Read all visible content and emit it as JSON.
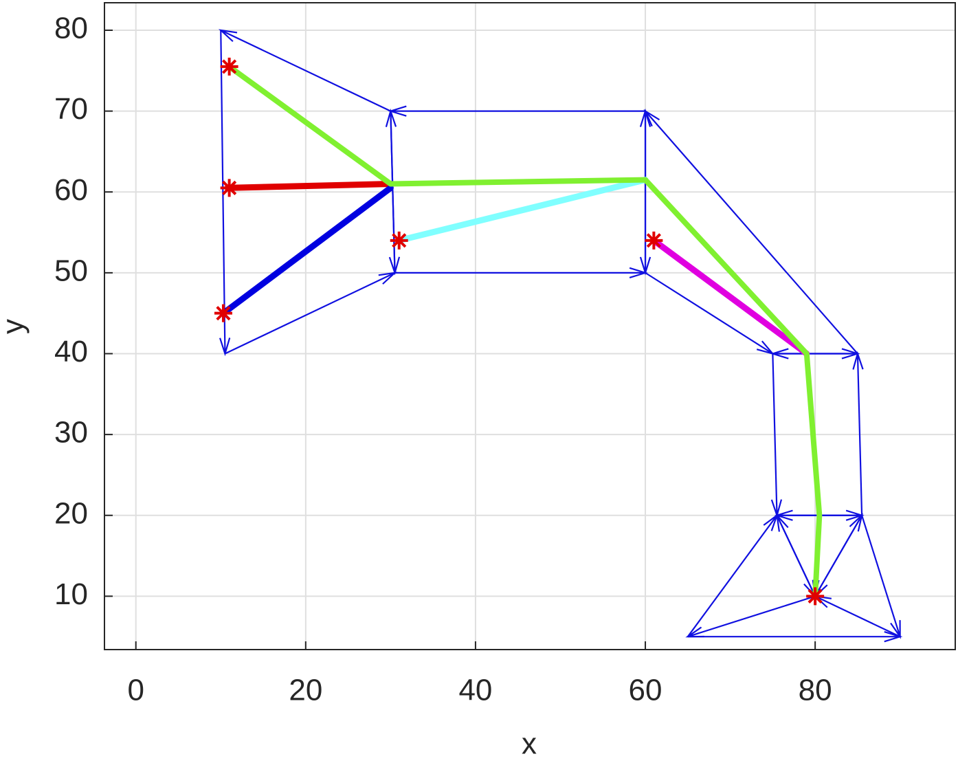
{
  "chart_data": {
    "type": "line",
    "xlabel": "x",
    "ylabel": "y",
    "xlim": [
      -3.7,
      96.5
    ],
    "ylim": [
      3.4,
      83.4
    ],
    "xticks": [
      0,
      20,
      40,
      60,
      80
    ],
    "yticks": [
      10,
      20,
      30,
      40,
      50,
      60,
      70,
      80
    ],
    "grid": true,
    "edge_color": "#1010e0",
    "edges": [
      {
        "x": [
          30,
          10
        ],
        "y": [
          70,
          80
        ]
      },
      {
        "x": [
          10,
          10.5
        ],
        "y": [
          80,
          40
        ]
      },
      {
        "x": [
          10.5,
          30.5
        ],
        "y": [
          40,
          50
        ]
      },
      {
        "x": [
          30.5,
          30
        ],
        "y": [
          50,
          70
        ]
      },
      {
        "x": [
          30,
          30.5
        ],
        "y": [
          70,
          50
        ]
      },
      {
        "x": [
          60,
          30
        ],
        "y": [
          70,
          70
        ]
      },
      {
        "x": [
          30.5,
          60
        ],
        "y": [
          50,
          50
        ]
      },
      {
        "x": [
          60,
          60
        ],
        "y": [
          50,
          70
        ]
      },
      {
        "x": [
          60,
          60
        ],
        "y": [
          70,
          50
        ]
      },
      {
        "x": [
          85,
          60
        ],
        "y": [
          40,
          70
        ]
      },
      {
        "x": [
          60,
          75
        ],
        "y": [
          50,
          40
        ]
      },
      {
        "x": [
          75,
          85
        ],
        "y": [
          40,
          40
        ]
      },
      {
        "x": [
          85,
          75
        ],
        "y": [
          40,
          40
        ]
      },
      {
        "x": [
          75,
          75.5
        ],
        "y": [
          40,
          20
        ]
      },
      {
        "x": [
          85.5,
          85
        ],
        "y": [
          20,
          40
        ]
      },
      {
        "x": [
          75.5,
          85.5
        ],
        "y": [
          20,
          20
        ]
      },
      {
        "x": [
          85.5,
          75.5
        ],
        "y": [
          20,
          20
        ]
      },
      {
        "x": [
          80,
          75.5
        ],
        "y": [
          10,
          20
        ]
      },
      {
        "x": [
          75.5,
          80
        ],
        "y": [
          20,
          10
        ]
      },
      {
        "x": [
          80,
          85.5
        ],
        "y": [
          10,
          20
        ]
      },
      {
        "x": [
          85.5,
          80
        ],
        "y": [
          20,
          10
        ]
      },
      {
        "x": [
          65,
          75.5
        ],
        "y": [
          5,
          20
        ]
      },
      {
        "x": [
          85.5,
          90
        ],
        "y": [
          20,
          5
        ]
      },
      {
        "x": [
          90,
          80
        ],
        "y": [
          5,
          10
        ]
      },
      {
        "x": [
          80,
          65
        ],
        "y": [
          10,
          5
        ]
      },
      {
        "x": [
          65,
          90
        ],
        "y": [
          5,
          5
        ]
      }
    ],
    "series": [
      {
        "color": "#e00000",
        "x": [
          10.8,
          30
        ],
        "y": [
          60.5,
          61
        ]
      },
      {
        "color": "#0000e0",
        "x": [
          10.3,
          30
        ],
        "y": [
          45,
          60.5
        ]
      },
      {
        "color": "#80ffff",
        "x": [
          31,
          60
        ],
        "y": [
          54,
          61.5
        ]
      },
      {
        "color": "#e000e0",
        "x": [
          61,
          79
        ],
        "y": [
          54,
          40
        ]
      },
      {
        "color": "#80f030",
        "x": [
          11,
          30,
          60,
          79,
          80.5,
          80
        ],
        "y": [
          75.5,
          61,
          61.5,
          40,
          20,
          10
        ]
      }
    ],
    "markers": {
      "color": "#e00000",
      "x": [
        11,
        11,
        10.3,
        31,
        61,
        80
      ],
      "y": [
        75.5,
        60.5,
        45,
        54,
        54,
        10
      ]
    }
  }
}
